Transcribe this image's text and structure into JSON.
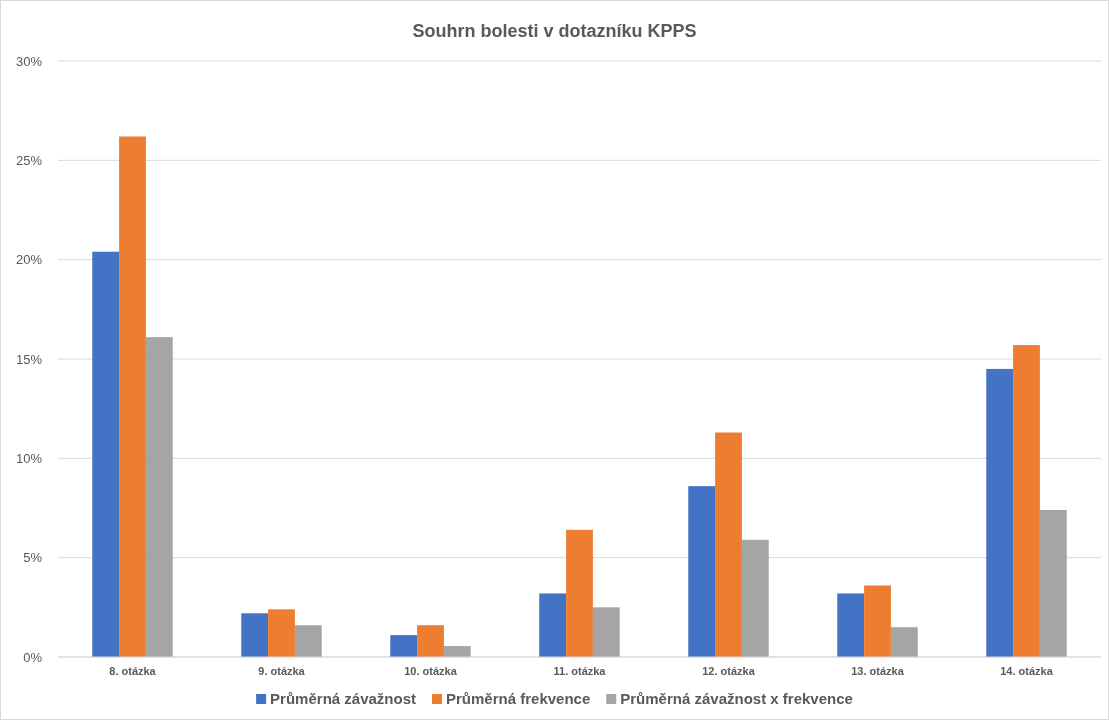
{
  "chart_data": {
    "type": "bar",
    "title": "Souhrn bolesti v dotazníku KPPS",
    "categories": [
      "8. otázka",
      "9. otázka",
      "10. otázka",
      "11. otázka",
      "12. otázka",
      "13. otázka",
      "14. otázka"
    ],
    "series": [
      {
        "name": "Průměrná závažnost",
        "color": "#4472c4",
        "values": [
          20.4,
          2.2,
          1.1,
          3.2,
          8.6,
          3.2,
          14.5
        ]
      },
      {
        "name": "Průměrná frekvence",
        "color": "#ed7d31",
        "values": [
          26.2,
          2.4,
          1.6,
          6.4,
          11.3,
          3.6,
          15.7
        ]
      },
      {
        "name": "Průměrná závažnost x frekvence",
        "color": "#a5a5a5",
        "values": [
          16.1,
          1.6,
          0.55,
          2.5,
          5.9,
          1.5,
          7.4
        ]
      }
    ],
    "ylim": [
      0,
      30
    ],
    "yticks": [
      {
        "value": 0,
        "label": "0%"
      },
      {
        "value": 5,
        "label": "5%"
      },
      {
        "value": 10,
        "label": "10%"
      },
      {
        "value": 15,
        "label": "15%"
      },
      {
        "value": 20,
        "label": "20%"
      },
      {
        "value": 25,
        "label": "25%"
      },
      {
        "value": 30,
        "label": "30%"
      }
    ],
    "grid": "y",
    "legend": "bottom"
  }
}
